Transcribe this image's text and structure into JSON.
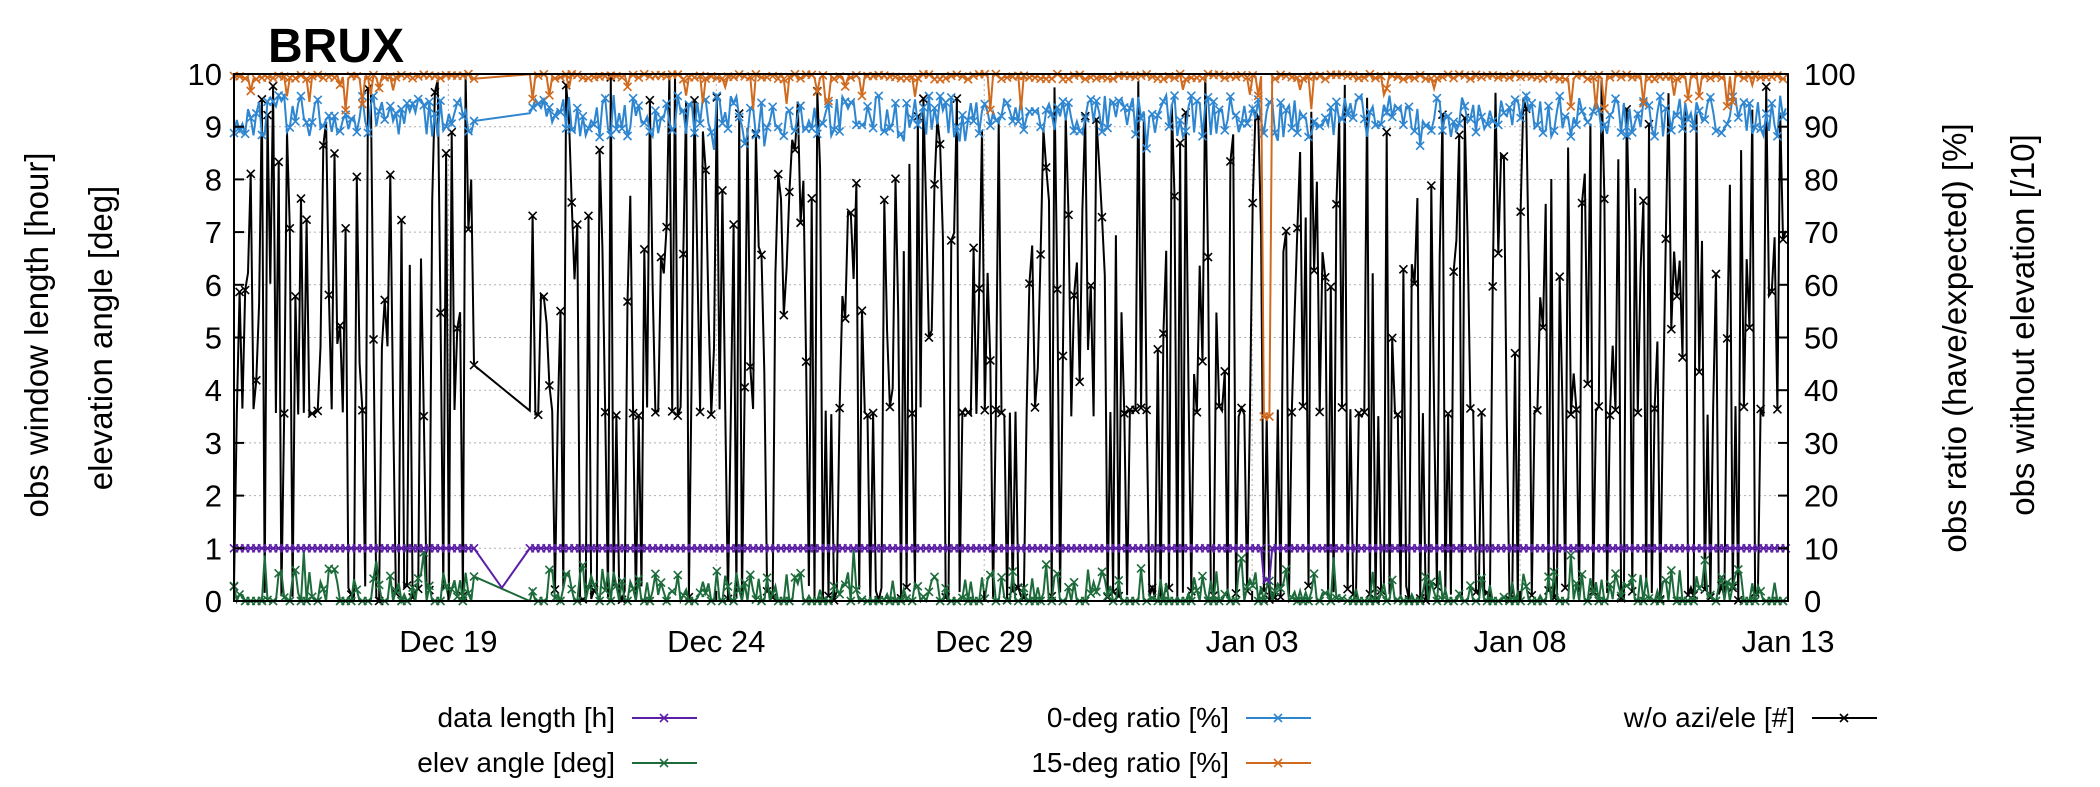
{
  "chart_data": {
    "type": "line",
    "title": "BRUX",
    "y_left_labels": [
      "obs window length [hour]",
      "elevation angle [deg]"
    ],
    "y_right_labels": [
      "obs ratio (have/expected) [%]",
      "obs without elevation [/10]"
    ],
    "ylim_left": [
      0,
      10
    ],
    "ylim_right": [
      0,
      100
    ],
    "y_left_ticks": [
      "0",
      "1",
      "2",
      "3",
      "4",
      "5",
      "6",
      "7",
      "8",
      "9",
      "10"
    ],
    "y_right_ticks": [
      "0",
      "10",
      "20",
      "30",
      "40",
      "50",
      "60",
      "70",
      "80",
      "90",
      "100"
    ],
    "x_range_days": [
      "2023-12-15T00:00",
      "2024-01-13T00:00"
    ],
    "x_ticks": [
      {
        "label": "Dec 19",
        "date": "2023-12-19"
      },
      {
        "label": "Dec 24",
        "date": "2023-12-24"
      },
      {
        "label": "Dec 29",
        "date": "2023-12-29"
      },
      {
        "label": "Jan 03",
        "date": "2024-01-03"
      },
      {
        "label": "Jan 08",
        "date": "2024-01-08"
      },
      {
        "label": "Jan 13",
        "date": "2024-01-13"
      }
    ],
    "grid": true,
    "legend_position": "bottom",
    "data_gap": [
      "2023-12-19T12:00",
      "2023-12-20T12:00"
    ],
    "series": [
      {
        "name": "data length  [h]",
        "color": "#5b1fa6",
        "axis": "left",
        "typical_value": 1.0,
        "dips": [
          [
            "2023-12-20T00:00",
            0.25
          ],
          [
            "2024-01-03T06:00",
            0.4
          ]
        ]
      },
      {
        "name": "elev angle [deg]",
        "color": "#1d6b3a",
        "axis": "left",
        "typical_range": [
          0,
          0.6
        ],
        "peak": 1.0
      },
      {
        "name": "0-deg ratio [%]",
        "color": "#2f86d0",
        "axis": "right",
        "typical_range": [
          86,
          98
        ],
        "min": 85
      },
      {
        "name": "15-deg ratio [%]",
        "color": "#d06a1e",
        "axis": "right",
        "typical_value": 99,
        "dips": [
          [
            "2024-01-03T06:00",
            35
          ]
        ]
      },
      {
        "name": "w/o azi/ele [#]",
        "color": "#000000",
        "axis": "right",
        "typical_range": [
          0,
          100
        ],
        "common_level": 36
      }
    ]
  }
}
